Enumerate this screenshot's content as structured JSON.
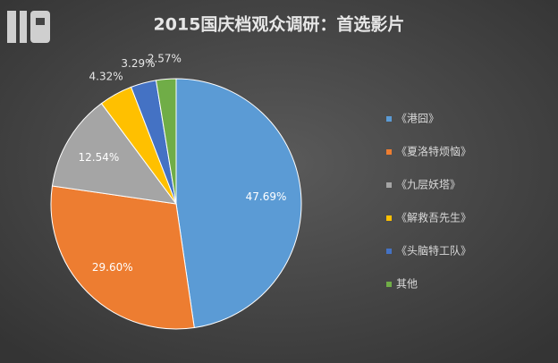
{
  "chart_data": {
    "type": "pie",
    "title": "2015国庆档观众调研：首选影片",
    "categories": [
      "《港囧》",
      "《夏洛特烦恼》",
      "《九层妖塔》",
      "《解救吾先生》",
      "《头脑特工队》",
      "其他"
    ],
    "values": [
      47.69,
      29.6,
      12.54,
      4.32,
      3.29,
      2.57
    ],
    "value_labels": [
      "47.69%",
      "29.60%",
      "12.54%",
      "4.32%",
      "3.29%",
      "2.57%"
    ],
    "colors": [
      "#5b9bd5",
      "#ed7d31",
      "#a5a5a5",
      "#ffc000",
      "#4472c4",
      "#70ad47"
    ],
    "legend": "right"
  }
}
